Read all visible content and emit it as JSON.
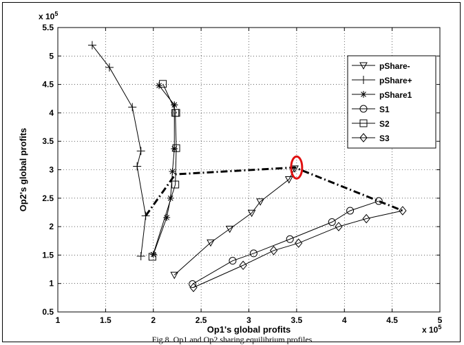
{
  "caption": "Fig 8. Op1 and Op2 sharing equilibrium profiles",
  "chart_data": {
    "type": "line",
    "xlabel": "Op1's global profits",
    "ylabel": "Op2's global profits",
    "x_multiplier": "x 10^5",
    "y_multiplier": "x 10^5",
    "xlim": [
      1,
      5
    ],
    "ylim": [
      0.5,
      5.5
    ],
    "xticks": [
      "1",
      "1.5",
      "2",
      "2.5",
      "3",
      "3.5",
      "4",
      "4.5",
      "5"
    ],
    "yticks": [
      "0.5",
      "1",
      "1.5",
      "2",
      "2.5",
      "3",
      "3.5",
      "4",
      "4.5",
      "5",
      "5.5"
    ],
    "grid": true,
    "legend_position": "top-right",
    "series": [
      {
        "name": "pShare-",
        "marker": "triangle-down",
        "x": [
          2.22,
          2.6,
          2.8,
          3.03,
          3.12,
          3.42,
          3.48
        ],
        "y": [
          1.15,
          1.72,
          1.96,
          2.24,
          2.44,
          2.83,
          3.02
        ]
      },
      {
        "name": "pShare+",
        "marker": "plus",
        "x": [
          1.87,
          1.92,
          1.83,
          1.87,
          1.78,
          1.54,
          1.36
        ],
        "y": [
          1.48,
          2.19,
          3.06,
          3.33,
          4.1,
          4.8,
          5.19
        ]
      },
      {
        "name": "pShare1",
        "marker": "star",
        "x": [
          2.0,
          2.14,
          2.18,
          2.2,
          2.22,
          2.22,
          2.22,
          2.06
        ],
        "y": [
          1.51,
          2.16,
          2.5,
          2.97,
          3.37,
          4.14,
          4.14,
          4.48
        ]
      },
      {
        "name": "S1",
        "marker": "circle",
        "x": [
          2.41,
          2.83,
          3.05,
          3.43,
          3.87,
          4.06,
          4.36
        ],
        "y": [
          0.99,
          1.4,
          1.53,
          1.78,
          2.08,
          2.28,
          2.45
        ]
      },
      {
        "name": "S2",
        "marker": "square",
        "x": [
          1.99,
          2.23,
          2.24,
          2.23,
          2.24,
          2.1
        ],
        "y": [
          1.47,
          2.74,
          3.38,
          4.0,
          4.0,
          4.51
        ]
      },
      {
        "name": "S3",
        "marker": "diamond",
        "x": [
          2.42,
          2.94,
          3.26,
          3.52,
          3.94,
          4.23,
          4.61
        ],
        "y": [
          0.93,
          1.32,
          1.58,
          1.71,
          2.0,
          2.14,
          2.28
        ]
      }
    ],
    "frontier": {
      "style": "dash-dot",
      "x": [
        1.92,
        2.23,
        3.48,
        4.61
      ],
      "y": [
        2.19,
        2.92,
        3.04,
        2.28
      ]
    },
    "highlight": {
      "shape": "ellipse",
      "color": "#e01010",
      "x": 3.5,
      "y": 3.04
    }
  }
}
